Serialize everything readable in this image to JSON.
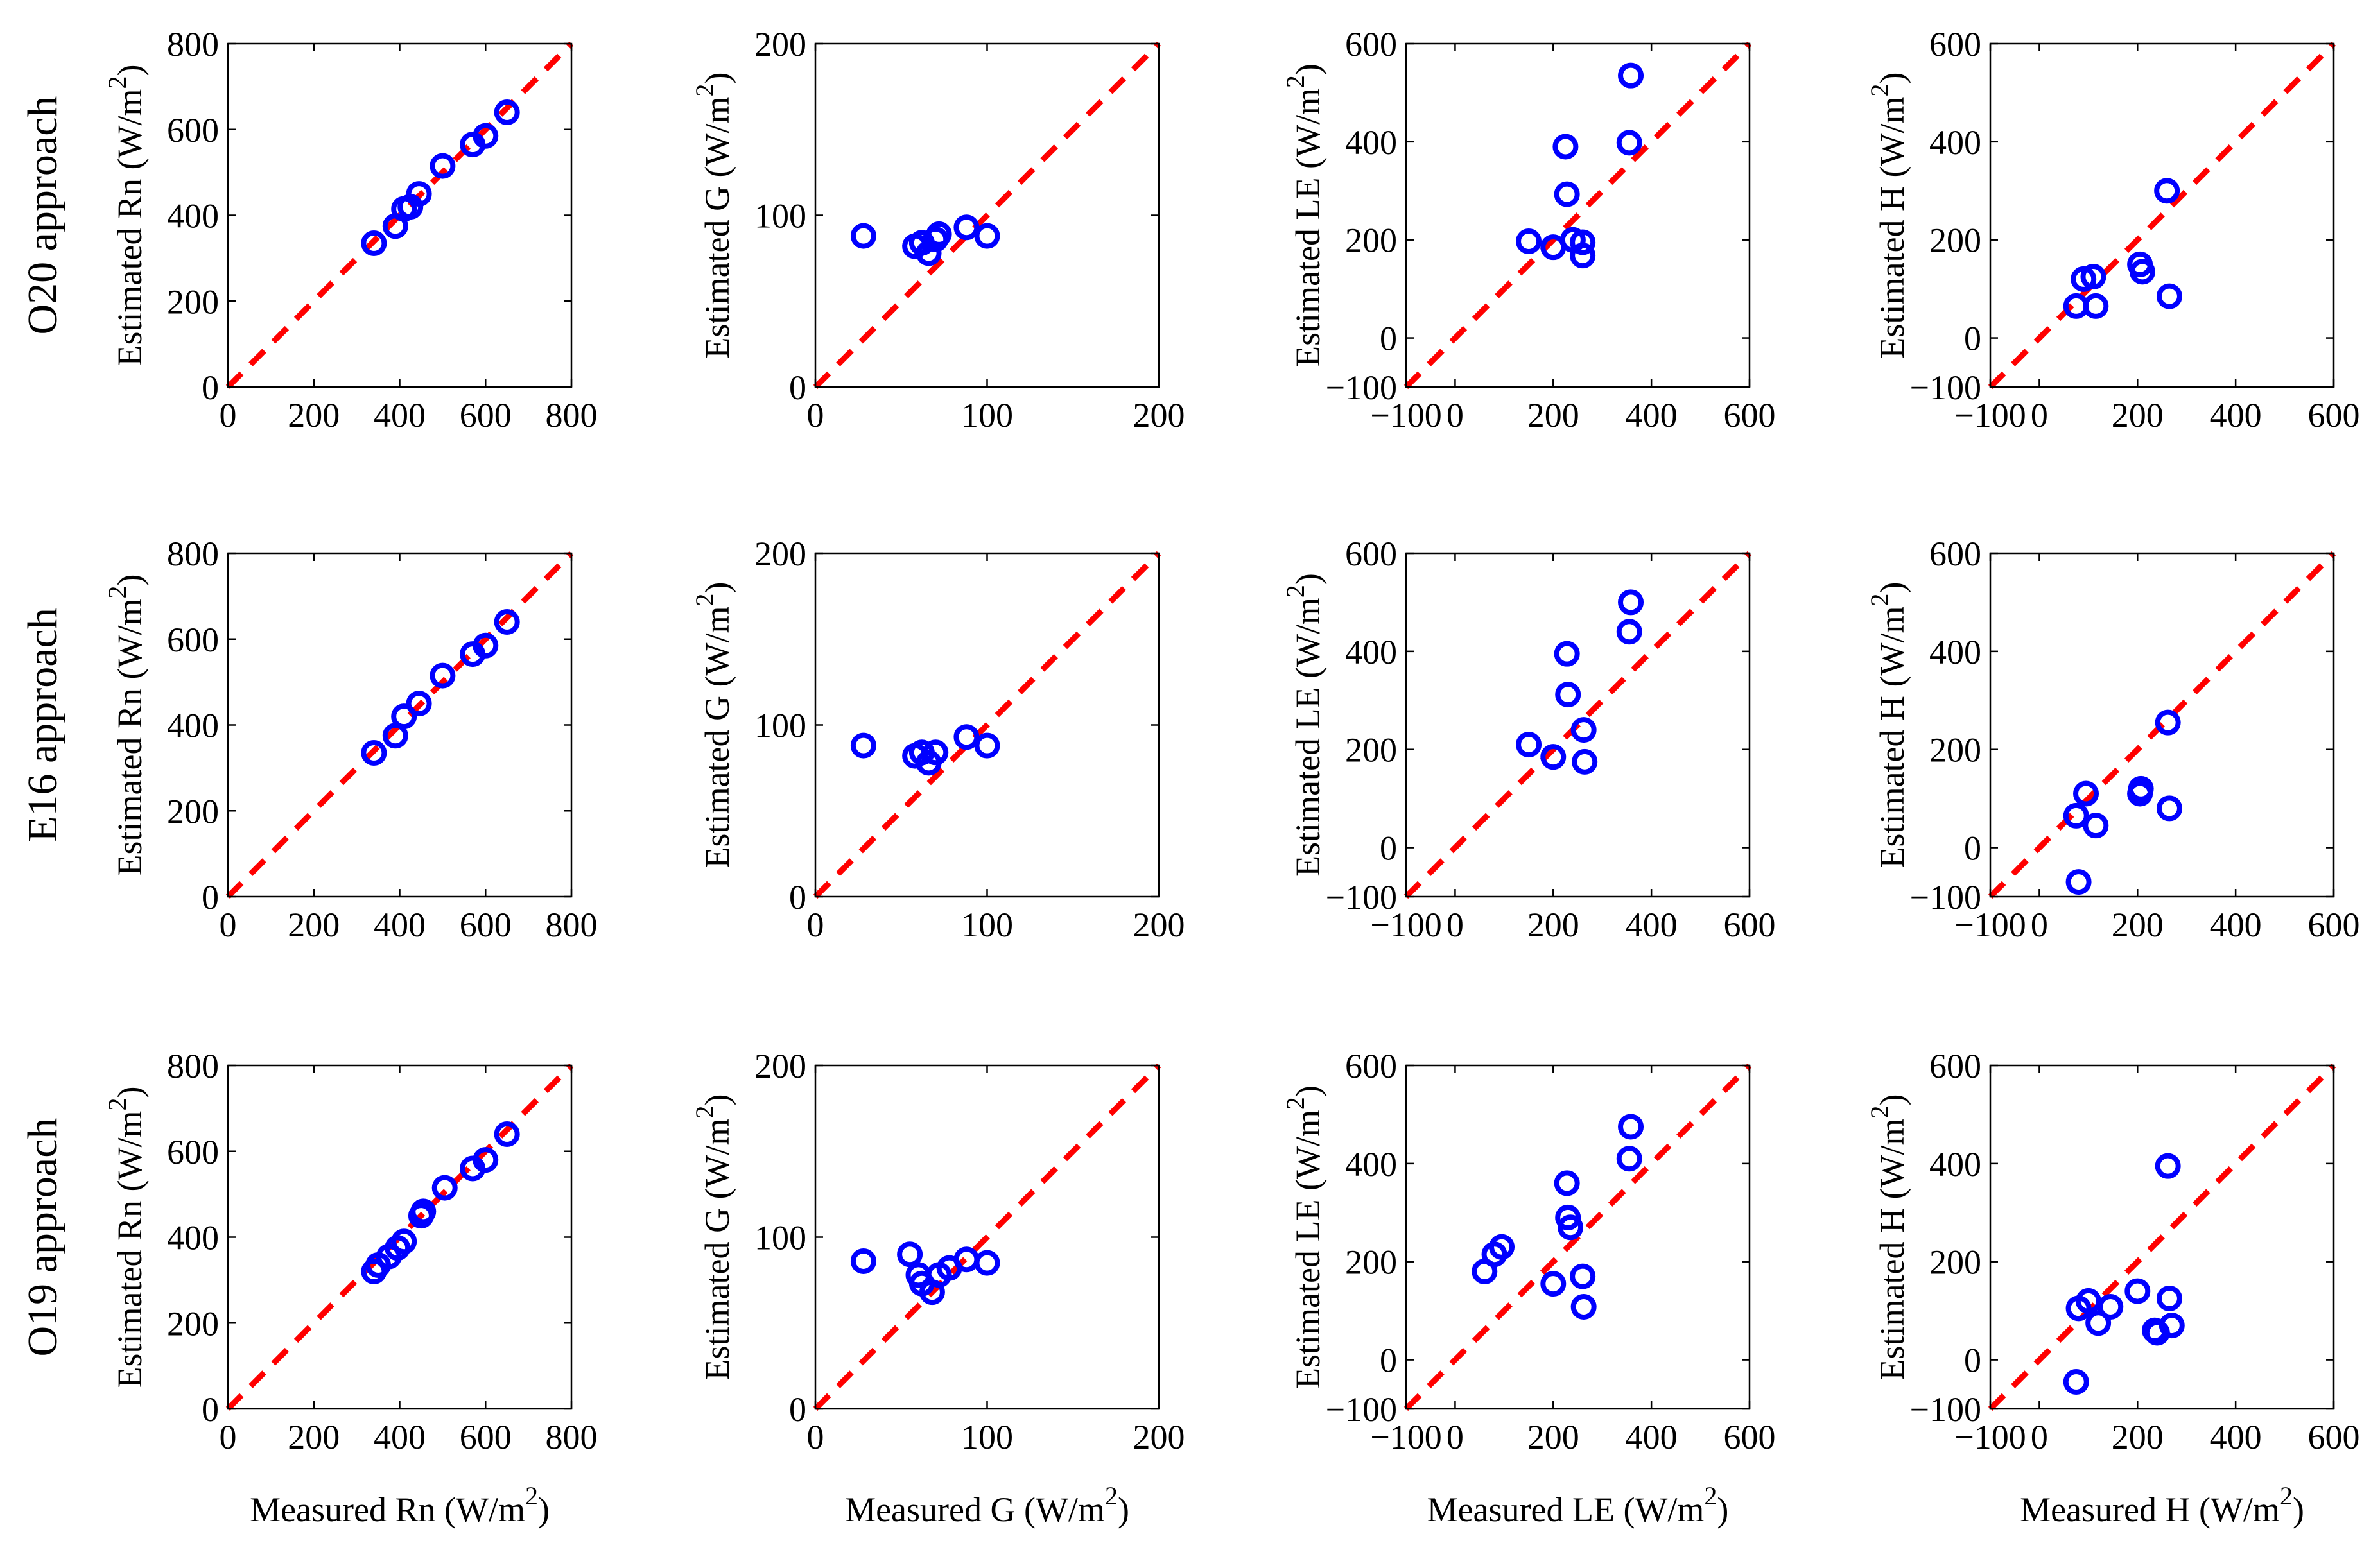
{
  "row_labels": [
    "O20 approach",
    "E16 approach",
    "O19 approach"
  ],
  "colors": {
    "points": "#0000ff",
    "one_to_one_line": "#ff0000",
    "axes": "#000000"
  },
  "chart_data": [
    {
      "type": "scatter",
      "row": 0,
      "col": 0,
      "xlabel": "",
      "ylabel": "Estimated Rn  (W/m",
      "ylabel_sup": "2",
      "ylabel_close": ")",
      "xlim": [
        0,
        800
      ],
      "ylim": [
        0,
        800
      ],
      "xticks": [
        "0",
        "200",
        "400",
        "600",
        "800"
      ],
      "yticks": [
        "0",
        "200",
        "400",
        "600",
        "800"
      ],
      "x": [
        340,
        390,
        410,
        425,
        445,
        500,
        570,
        600,
        650
      ],
      "y": [
        335,
        375,
        415,
        420,
        450,
        515,
        565,
        585,
        640
      ]
    },
    {
      "type": "scatter",
      "row": 0,
      "col": 1,
      "xlabel": "",
      "ylabel": "Estimated G  (W/m",
      "ylabel_sup": "2",
      "ylabel_close": ")",
      "xlim": [
        0,
        200
      ],
      "ylim": [
        0,
        200
      ],
      "xticks": [
        "0",
        "100",
        "200"
      ],
      "yticks": [
        "0",
        "100",
        "200"
      ],
      "x": [
        28,
        58,
        62,
        66,
        70,
        72,
        88,
        100
      ],
      "y": [
        88,
        82,
        84,
        78,
        86,
        89,
        93,
        88
      ]
    },
    {
      "type": "scatter",
      "row": 0,
      "col": 2,
      "xlabel": "",
      "ylabel": "Estimated LE  (W/m",
      "ylabel_sup": "2",
      "ylabel_close": ")",
      "xlim": [
        -100,
        600
      ],
      "ylim": [
        -100,
        600
      ],
      "xticks": [
        "−100",
        "0",
        "200",
        "400",
        "600"
      ],
      "yticks": [
        "−100",
        "0",
        "200",
        "400",
        "600"
      ],
      "x": [
        150,
        200,
        225,
        228,
        240,
        260,
        260,
        355,
        358
      ],
      "y": [
        197,
        185,
        390,
        293,
        200,
        195,
        168,
        398,
        535
      ]
    },
    {
      "type": "scatter",
      "row": 0,
      "col": 3,
      "xlabel": "",
      "ylabel": "Estimated H  (W/m",
      "ylabel_sup": "2",
      "ylabel_close": ")",
      "xlim": [
        -100,
        600
      ],
      "ylim": [
        -100,
        600
      ],
      "xticks": [
        "−100",
        "0",
        "200",
        "400",
        "600"
      ],
      "yticks": [
        "−100",
        "0",
        "200",
        "400",
        "600"
      ],
      "x": [
        75,
        90,
        110,
        115,
        205,
        210,
        260,
        265
      ],
      "y": [
        65,
        120,
        125,
        65,
        150,
        135,
        300,
        85
      ]
    },
    {
      "type": "scatter",
      "row": 1,
      "col": 0,
      "xlabel": "",
      "ylabel": "Estimated Rn  (W/m",
      "ylabel_sup": "2",
      "ylabel_close": ")",
      "xlim": [
        0,
        800
      ],
      "ylim": [
        0,
        800
      ],
      "xticks": [
        "0",
        "200",
        "400",
        "600",
        "800"
      ],
      "yticks": [
        "0",
        "200",
        "400",
        "600",
        "800"
      ],
      "x": [
        340,
        390,
        410,
        445,
        500,
        570,
        600,
        650
      ],
      "y": [
        335,
        375,
        420,
        450,
        515,
        565,
        585,
        640
      ]
    },
    {
      "type": "scatter",
      "row": 1,
      "col": 1,
      "xlabel": "",
      "ylabel": "Estimated G  (W/m",
      "ylabel_sup": "2",
      "ylabel_close": ")",
      "xlim": [
        0,
        200
      ],
      "ylim": [
        0,
        200
      ],
      "xticks": [
        "0",
        "100",
        "200"
      ],
      "yticks": [
        "0",
        "100",
        "200"
      ],
      "x": [
        28,
        58,
        62,
        66,
        70,
        88,
        100
      ],
      "y": [
        88,
        82,
        84,
        78,
        84,
        93,
        88
      ]
    },
    {
      "type": "scatter",
      "row": 1,
      "col": 2,
      "xlabel": "",
      "ylabel": "Estimated LE  (W/m",
      "ylabel_sup": "2",
      "ylabel_close": ")",
      "xlim": [
        -100,
        600
      ],
      "ylim": [
        -100,
        600
      ],
      "xticks": [
        "−100",
        "0",
        "200",
        "400",
        "600"
      ],
      "yticks": [
        "−100",
        "0",
        "200",
        "400",
        "600"
      ],
      "x": [
        150,
        200,
        228,
        230,
        262,
        264,
        355,
        358
      ],
      "y": [
        210,
        185,
        395,
        312,
        240,
        175,
        440,
        500
      ]
    },
    {
      "type": "scatter",
      "row": 1,
      "col": 3,
      "xlabel": "",
      "ylabel": "Estimated H  (W/m",
      "ylabel_sup": "2",
      "ylabel_close": ")",
      "xlim": [
        -100,
        600
      ],
      "ylim": [
        -100,
        600
      ],
      "xticks": [
        "−100",
        "0",
        "200",
        "400",
        "600"
      ],
      "yticks": [
        "−100",
        "0",
        "200",
        "400",
        "600"
      ],
      "x": [
        75,
        80,
        95,
        115,
        205,
        207,
        262,
        265
      ],
      "y": [
        65,
        -70,
        110,
        45,
        110,
        120,
        255,
        80
      ]
    },
    {
      "type": "scatter",
      "row": 2,
      "col": 0,
      "xlabel": "Measured Rn (W/m",
      "xlabel_sup": "2",
      "xlabel_close": ")",
      "ylabel": "Estimated Rn  (W/m",
      "ylabel_sup": "2",
      "ylabel_close": ")",
      "xlim": [
        0,
        800
      ],
      "ylim": [
        0,
        800
      ],
      "xticks": [
        "0",
        "200",
        "400",
        "600",
        "800"
      ],
      "yticks": [
        "0",
        "200",
        "400",
        "600",
        "800"
      ],
      "x": [
        340,
        350,
        375,
        395,
        410,
        450,
        455,
        505,
        570,
        600,
        650
      ],
      "y": [
        320,
        335,
        355,
        375,
        390,
        450,
        460,
        515,
        560,
        580,
        640
      ]
    },
    {
      "type": "scatter",
      "row": 2,
      "col": 1,
      "xlabel": "Measured G (W/m",
      "xlabel_sup": "2",
      "xlabel_close": ")",
      "ylabel": "Estimated G  (W/m",
      "ylabel_sup": "2",
      "ylabel_close": ")",
      "xlim": [
        0,
        200
      ],
      "ylim": [
        0,
        200
      ],
      "xticks": [
        "0",
        "100",
        "200"
      ],
      "yticks": [
        "0",
        "100",
        "200"
      ],
      "x": [
        28,
        55,
        60,
        62,
        68,
        72,
        78,
        88,
        100
      ],
      "y": [
        86,
        90,
        78,
        73,
        68,
        78,
        82,
        87,
        85
      ]
    },
    {
      "type": "scatter",
      "row": 2,
      "col": 2,
      "xlabel": "Measured LE (W/m",
      "xlabel_sup": "2",
      "xlabel_close": ")",
      "ylabel": "Estimated LE  (W/m",
      "ylabel_sup": "2",
      "ylabel_close": ")",
      "xlim": [
        -100,
        600
      ],
      "ylim": [
        -100,
        600
      ],
      "xticks": [
        "−100",
        "0",
        "200",
        "400",
        "600"
      ],
      "yticks": [
        "−100",
        "0",
        "200",
        "400",
        "600"
      ],
      "x": [
        60,
        80,
        95,
        200,
        228,
        230,
        235,
        260,
        262,
        355,
        358
      ],
      "y": [
        180,
        215,
        230,
        155,
        360,
        290,
        270,
        170,
        108,
        410,
        475
      ]
    },
    {
      "type": "scatter",
      "row": 2,
      "col": 3,
      "xlabel": "Measured H (W/m",
      "xlabel_sup": "2",
      "xlabel_close": ")",
      "ylabel": "Estimated H  (W/m",
      "ylabel_sup": "2",
      "ylabel_close": ")",
      "xlim": [
        -100,
        600
      ],
      "ylim": [
        -100,
        600
      ],
      "xticks": [
        "−100",
        "0",
        "200",
        "400",
        "600"
      ],
      "yticks": [
        "−100",
        "0",
        "200",
        "400",
        "600"
      ],
      "x": [
        75,
        80,
        100,
        120,
        145,
        200,
        235,
        240,
        262,
        265,
        270
      ],
      "y": [
        -45,
        105,
        120,
        75,
        108,
        140,
        60,
        55,
        395,
        125,
        70
      ]
    }
  ]
}
